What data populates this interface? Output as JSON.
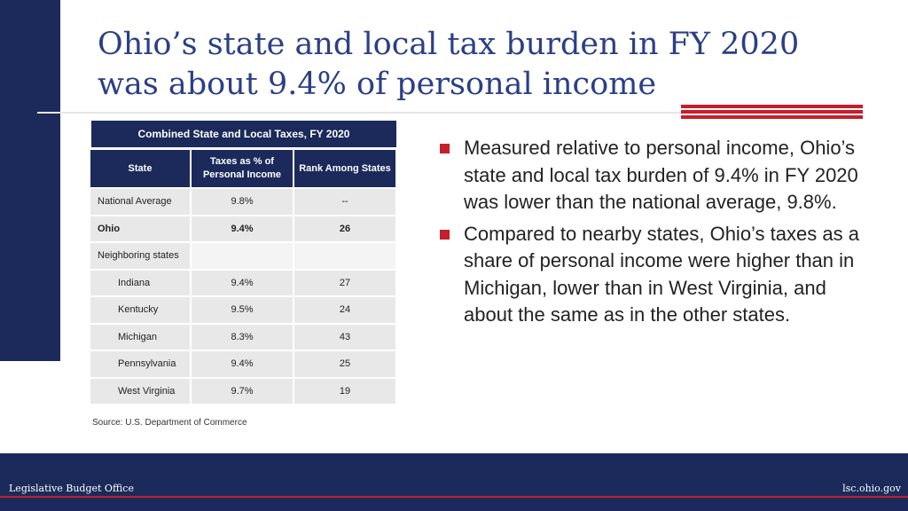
{
  "title_line1": "Ohio’s state and local tax burden in FY 2020",
  "title_line2": "was about 9.4% of personal income",
  "table": {
    "caption": "Combined State and Local Taxes, FY 2020",
    "headers": [
      "State",
      "Taxes as % of Personal Income",
      "Rank Among States"
    ],
    "rows": [
      {
        "state": "National Average",
        "pct": "9.8%",
        "rank": "--"
      },
      {
        "state": "Ohio",
        "pct": "9.4%",
        "rank": "26"
      },
      {
        "state": "Neighboring states",
        "pct": "",
        "rank": ""
      },
      {
        "state": "Indiana",
        "pct": "9.4%",
        "rank": "27"
      },
      {
        "state": "Kentucky",
        "pct": "9.5%",
        "rank": "24"
      },
      {
        "state": "Michigan",
        "pct": "8.3%",
        "rank": "43"
      },
      {
        "state": "Pennsylvania",
        "pct": "9.4%",
        "rank": "25"
      },
      {
        "state": "West Virginia",
        "pct": "9.7%",
        "rank": "19"
      }
    ]
  },
  "source": "Source: U.S. Department of Commerce",
  "bullets": [
    "Measured relative to personal income, Ohio’s state and local tax burden of 9.4% in FY 2020 was lower than the national average, 9.8%.",
    "Compared to nearby states, Ohio’s taxes as a share of personal income were higher than in Michigan, lower than in West Virginia, and about the same as in the other states."
  ],
  "footer": {
    "left": "Legislative Budget Office",
    "right": "lsc.ohio.gov"
  },
  "colors": {
    "navy": "#1b2a5a",
    "title_blue": "#2b3f86",
    "accent_red": "#c41f2a",
    "cell_gray": "#e8e8e8"
  }
}
